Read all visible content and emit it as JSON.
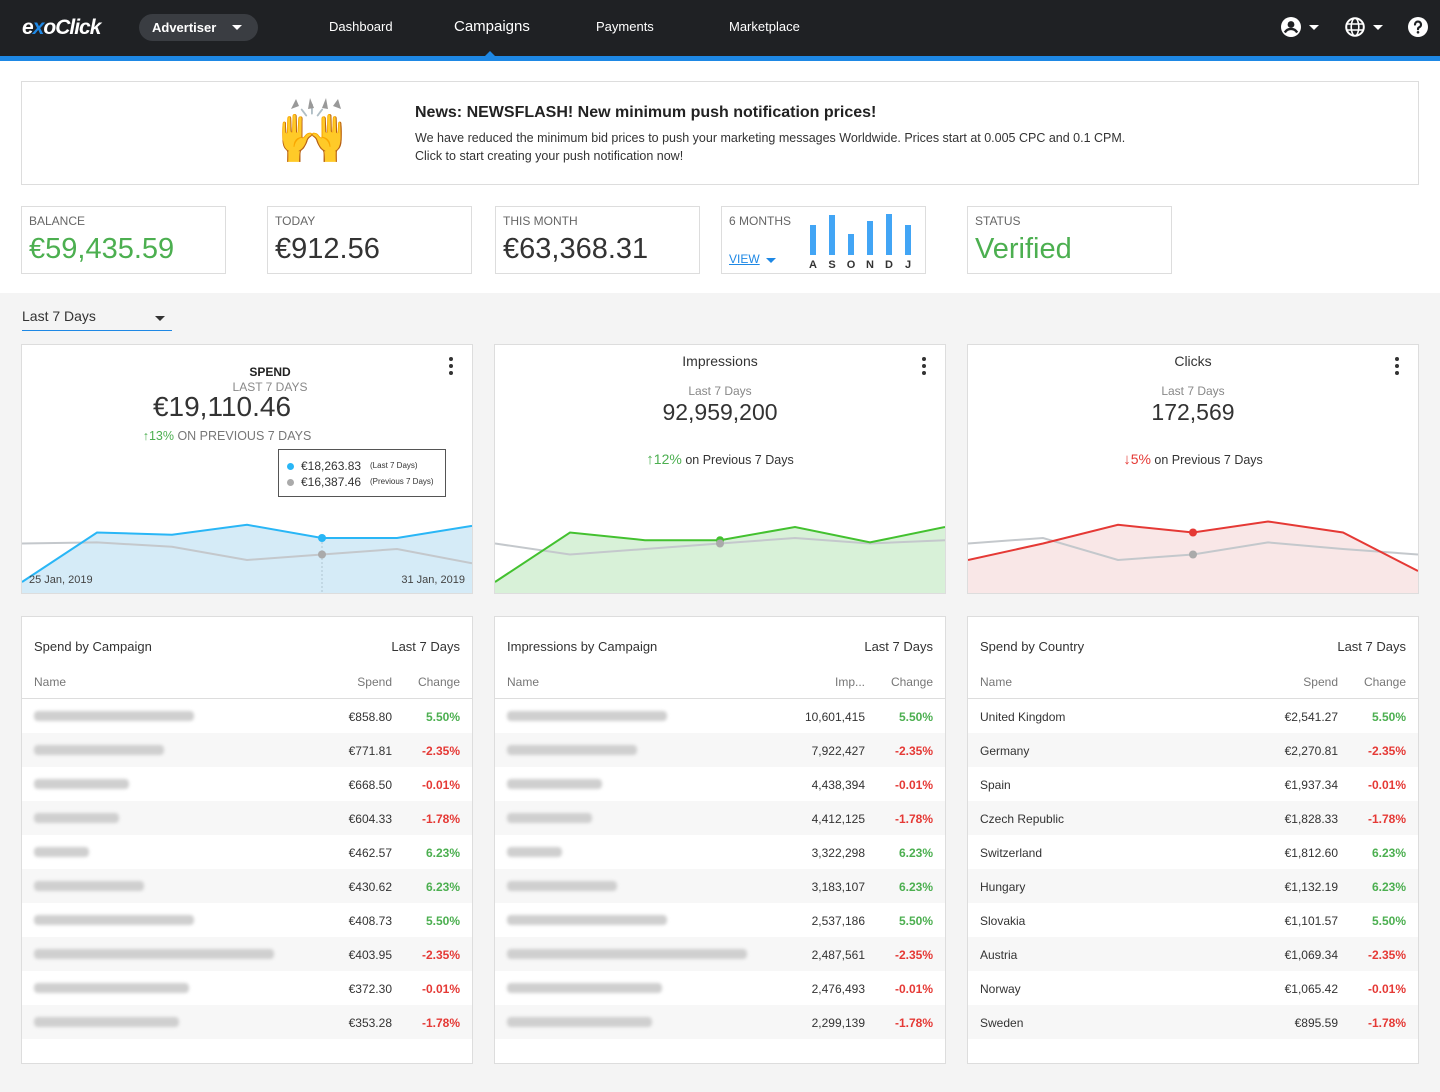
{
  "header": {
    "logo_pre": "e",
    "logo_x": "x",
    "logo_post": "oClick",
    "role": "Advertiser",
    "nav": [
      "Dashboard",
      "Campaigns",
      "Payments",
      "Marketplace"
    ],
    "active_nav": "Campaigns",
    "icons": [
      "user-icon",
      "globe-icon",
      "help-icon"
    ]
  },
  "news": {
    "title": "News: NEWSFLASH! New minimum push notification prices!",
    "line1": "We have reduced the minimum bid prices to push your marketing messages Worldwide. Prices start at 0.005 CPC and 0.1 CPM.",
    "line2": "Click to start creating your push notification now!",
    "emoji": "🙌"
  },
  "stats": {
    "balance_label": "BALANCE",
    "balance_value": "€59,435.59",
    "today_label": "TODAY",
    "today_value": "€912.56",
    "month_label": "THIS MONTH",
    "month_value": "€63,368.31",
    "six_months_label": "6 MONTHS",
    "view_label": "VIEW",
    "six_months_letters": [
      "A",
      "S",
      "O",
      "N",
      "D",
      "J"
    ],
    "six_months_levels": [
      0.72,
      0.95,
      0.5,
      0.82,
      0.98,
      0.72
    ],
    "status_label": "STATUS",
    "status_value": "Verified"
  },
  "period_select": "Last 7 Days",
  "charts": {
    "spend": {
      "title": "SPEND",
      "period": "LAST 7 DAYS",
      "value": "€19,110.46",
      "change": "13%",
      "change_text": "ON PREVIOUS 7 DAYS",
      "date_start": "25 Jan, 2019",
      "date_end": "31 Jan, 2019",
      "tooltip_current": "€18,263.83",
      "tooltip_current_label": "(Last 7 Days)",
      "tooltip_previous": "€16,387.46",
      "tooltip_previous_label": "(Previous 7 Days)"
    },
    "impressions": {
      "title": "Impressions",
      "period": "Last 7 Days",
      "value": "92,959,200",
      "change": "12%",
      "change_text": "on Previous 7 Days"
    },
    "clicks": {
      "title": "Clicks",
      "period": "Last 7 Days",
      "value": "172,569",
      "change": "5%",
      "change_text": "on Previous 7 Days"
    }
  },
  "chart_data": [
    {
      "type": "area",
      "title": "SPEND",
      "x": [
        "25 Jan, 2019",
        "",
        "",
        "",
        "",
        "",
        "31 Jan, 2019"
      ],
      "series": [
        {
          "name": "Last 7 Days",
          "values": [
            0.1,
            0.55,
            0.53,
            0.62,
            0.5,
            0.5,
            0.61
          ]
        },
        {
          "name": "Previous 7 Days",
          "values": [
            0.45,
            0.46,
            0.42,
            0.3,
            0.35,
            0.4,
            0.27
          ]
        }
      ]
    },
    {
      "type": "area",
      "title": "Impressions",
      "series": [
        {
          "name": "Last 7 Days",
          "values": [
            0.1,
            0.55,
            0.48,
            0.48,
            0.6,
            0.46,
            0.6
          ]
        },
        {
          "name": "Previous 7 Days",
          "values": [
            0.45,
            0.35,
            0.4,
            0.45,
            0.5,
            0.45,
            0.48
          ]
        }
      ]
    },
    {
      "type": "area",
      "title": "Clicks",
      "series": [
        {
          "name": "Last 7 Days",
          "values": [
            0.3,
            0.45,
            0.62,
            0.55,
            0.65,
            0.55,
            0.2
          ]
        },
        {
          "name": "Previous 7 Days",
          "values": [
            0.45,
            0.5,
            0.3,
            0.35,
            0.46,
            0.4,
            0.35
          ]
        }
      ]
    }
  ],
  "tables": {
    "spend_campaign": {
      "title": "Spend by Campaign",
      "period": "Last 7 Days",
      "columns": [
        "Name",
        "Spend",
        "Change"
      ],
      "rows": [
        {
          "value": "€858.80",
          "change": "5.50%",
          "dir": "up"
        },
        {
          "value": "€771.81",
          "change": "-2.35%",
          "dir": "down"
        },
        {
          "value": "€668.50",
          "change": "-0.01%",
          "dir": "down"
        },
        {
          "value": "€604.33",
          "change": "-1.78%",
          "dir": "down"
        },
        {
          "value": "€462.57",
          "change": "6.23%",
          "dir": "up"
        },
        {
          "value": "€430.62",
          "change": "6.23%",
          "dir": "up"
        },
        {
          "value": "€408.73",
          "change": "5.50%",
          "dir": "up"
        },
        {
          "value": "€403.95",
          "change": "-2.35%",
          "dir": "down"
        },
        {
          "value": "€372.30",
          "change": "-0.01%",
          "dir": "down"
        },
        {
          "value": "€353.28",
          "change": "-1.78%",
          "dir": "down"
        }
      ]
    },
    "impressions_campaign": {
      "title": "Impressions by Campaign",
      "period": "Last 7 Days",
      "columns": [
        "Name",
        "Imp...",
        "Change"
      ],
      "rows": [
        {
          "value": "10,601,415",
          "change": "5.50%",
          "dir": "up"
        },
        {
          "value": "7,922,427",
          "change": "-2.35%",
          "dir": "down"
        },
        {
          "value": "4,438,394",
          "change": "-0.01%",
          "dir": "down"
        },
        {
          "value": "4,412,125",
          "change": "-1.78%",
          "dir": "down"
        },
        {
          "value": "3,322,298",
          "change": "6.23%",
          "dir": "up"
        },
        {
          "value": "3,183,107",
          "change": "6.23%",
          "dir": "up"
        },
        {
          "value": "2,537,186",
          "change": "5.50%",
          "dir": "up"
        },
        {
          "value": "2,487,561",
          "change": "-2.35%",
          "dir": "down"
        },
        {
          "value": "2,476,493",
          "change": "-0.01%",
          "dir": "down"
        },
        {
          "value": "2,299,139",
          "change": "-1.78%",
          "dir": "down"
        }
      ]
    },
    "spend_country": {
      "title": "Spend by Country",
      "period": "Last 7 Days",
      "columns": [
        "Name",
        "Spend",
        "Change"
      ],
      "rows": [
        {
          "name": "United Kingdom",
          "value": "€2,541.27",
          "change": "5.50%",
          "dir": "up"
        },
        {
          "name": "Germany",
          "value": "€2,270.81",
          "change": "-2.35%",
          "dir": "down"
        },
        {
          "name": "Spain",
          "value": "€1,937.34",
          "change": "-0.01%",
          "dir": "down"
        },
        {
          "name": "Czech Republic",
          "value": "€1,828.33",
          "change": "-1.78%",
          "dir": "down"
        },
        {
          "name": "Switzerland",
          "value": "€1,812.60",
          "change": "6.23%",
          "dir": "up"
        },
        {
          "name": "Hungary",
          "value": "€1,132.19",
          "change": "6.23%",
          "dir": "up"
        },
        {
          "name": "Slovakia",
          "value": "€1,101.57",
          "change": "5.50%",
          "dir": "up"
        },
        {
          "name": "Austria",
          "value": "€1,069.34",
          "change": "-2.35%",
          "dir": "down"
        },
        {
          "name": "Norway",
          "value": "€1,065.42",
          "change": "-0.01%",
          "dir": "down"
        },
        {
          "name": "Sweden",
          "value": "€895.59",
          "change": "-1.78%",
          "dir": "down"
        }
      ]
    }
  }
}
